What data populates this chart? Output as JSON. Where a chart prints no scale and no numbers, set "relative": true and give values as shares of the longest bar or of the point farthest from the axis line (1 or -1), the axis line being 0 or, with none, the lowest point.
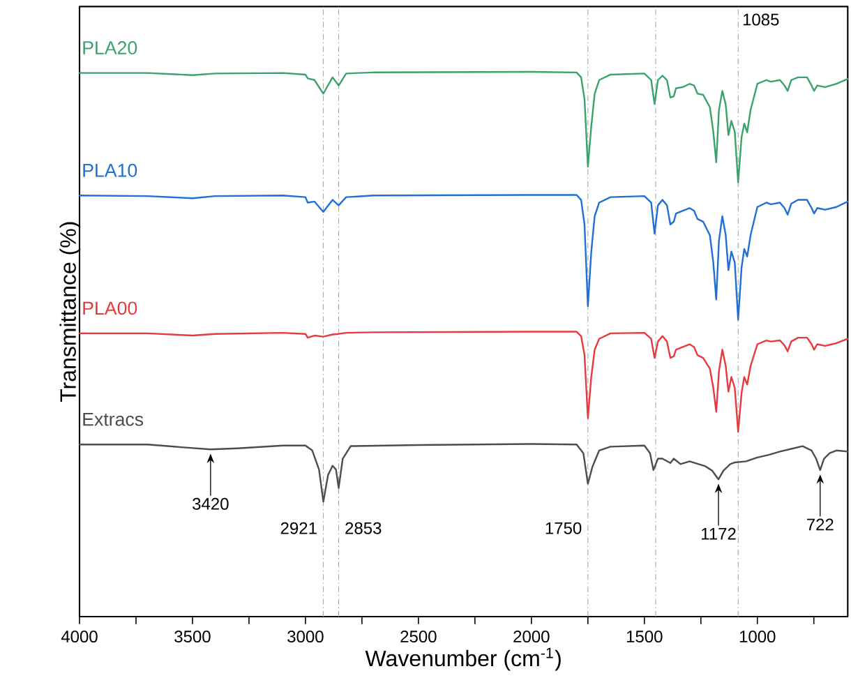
{
  "chart_data": {
    "type": "line",
    "relative": true,
    "xlabel": "Wavenumber (cm$^{-1}$)",
    "ylabel": "Transmittance (%)",
    "xlim": [
      4000,
      600
    ],
    "xticks": [
      4000,
      {
        "value": 3750,
        "label": null
      },
      3500,
      {
        "value": 3250,
        "label": null
      },
      3000,
      {
        "value": 2750,
        "label": null
      },
      2500,
      {
        "value": 2250,
        "label": null
      },
      2000,
      {
        "value": 1750,
        "label": null
      },
      1500,
      {
        "value": 1250,
        "label": null
      },
      1000,
      {
        "value": 750,
        "label": null
      }
    ],
    "tick_labels": "x",
    "marker": "none",
    "line_style": "solid",
    "series": [
      {
        "name": "PLA20",
        "color": "#3aa36b",
        "x": [
          4000,
          3700,
          3500,
          3400,
          3100,
          3000,
          2990,
          2960,
          2921,
          2880,
          2853,
          2820,
          2700,
          2000,
          1800,
          1780,
          1765,
          1750,
          1735,
          1720,
          1700,
          1650,
          1500,
          1470,
          1455,
          1440,
          1420,
          1400,
          1385,
          1370,
          1360,
          1330,
          1300,
          1280,
          1265,
          1240,
          1210,
          1195,
          1182,
          1170,
          1155,
          1140,
          1128,
          1115,
          1100,
          1085,
          1070,
          1058,
          1045,
          1030,
          1000,
          960,
          940,
          900,
          880,
          866,
          850,
          820,
          780,
          760,
          749,
          735,
          700,
          650,
          600
        ],
        "values": [
          0.998,
          0.998,
          0.994,
          0.997,
          0.998,
          0.995,
          0.988,
          0.985,
          0.96,
          0.99,
          0.975,
          0.997,
          0.999,
          1.0,
          0.999,
          0.99,
          0.95,
          0.826,
          0.9,
          0.96,
          0.985,
          0.995,
          0.997,
          0.985,
          0.941,
          0.985,
          0.993,
          0.985,
          0.953,
          0.955,
          0.97,
          0.972,
          0.978,
          0.975,
          0.96,
          0.958,
          0.935,
          0.89,
          0.834,
          0.93,
          0.965,
          0.94,
          0.884,
          0.91,
          0.89,
          0.797,
          0.88,
          0.905,
          0.889,
          0.93,
          0.978,
          0.985,
          0.982,
          0.985,
          0.975,
          0.965,
          0.985,
          0.99,
          0.99,
          0.975,
          0.965,
          0.975,
          0.972,
          0.978,
          0.987
        ]
      },
      {
        "name": "PLA10",
        "color": "#1f6fd6",
        "x": [
          4000,
          3700,
          3500,
          3400,
          3100,
          3000,
          2990,
          2960,
          2921,
          2880,
          2853,
          2820,
          2700,
          2000,
          1800,
          1780,
          1765,
          1750,
          1735,
          1720,
          1700,
          1650,
          1500,
          1470,
          1455,
          1440,
          1420,
          1400,
          1385,
          1370,
          1360,
          1330,
          1300,
          1280,
          1265,
          1240,
          1210,
          1195,
          1182,
          1170,
          1155,
          1140,
          1128,
          1115,
          1100,
          1085,
          1070,
          1058,
          1045,
          1030,
          1000,
          960,
          940,
          900,
          880,
          866,
          850,
          820,
          780,
          760,
          749,
          735,
          700,
          650,
          600
        ],
        "values": [
          0.773,
          0.772,
          0.768,
          0.772,
          0.773,
          0.77,
          0.76,
          0.762,
          0.743,
          0.765,
          0.755,
          0.77,
          0.773,
          0.774,
          0.774,
          0.765,
          0.72,
          0.57,
          0.67,
          0.735,
          0.76,
          0.77,
          0.772,
          0.76,
          0.703,
          0.755,
          0.765,
          0.755,
          0.72,
          0.725,
          0.74,
          0.745,
          0.75,
          0.745,
          0.73,
          0.725,
          0.7,
          0.65,
          0.582,
          0.69,
          0.735,
          0.7,
          0.636,
          0.67,
          0.65,
          0.545,
          0.64,
          0.675,
          0.661,
          0.7,
          0.752,
          0.76,
          0.757,
          0.76,
          0.75,
          0.738,
          0.758,
          0.765,
          0.765,
          0.75,
          0.74,
          0.75,
          0.747,
          0.752,
          0.762
        ]
      },
      {
        "name": "PLA00",
        "color": "#e8393e",
        "x": [
          4000,
          3700,
          3500,
          3400,
          3100,
          3000,
          2990,
          2960,
          2921,
          2880,
          2853,
          2820,
          2700,
          2000,
          1800,
          1780,
          1765,
          1750,
          1735,
          1720,
          1700,
          1650,
          1500,
          1470,
          1455,
          1440,
          1420,
          1400,
          1385,
          1370,
          1360,
          1330,
          1300,
          1280,
          1265,
          1240,
          1210,
          1195,
          1182,
          1170,
          1155,
          1140,
          1128,
          1115,
          1100,
          1085,
          1070,
          1058,
          1045,
          1030,
          1000,
          960,
          940,
          900,
          880,
          866,
          850,
          820,
          780,
          760,
          749,
          735,
          700,
          650,
          600
        ],
        "values": [
          0.52,
          0.52,
          0.516,
          0.519,
          0.521,
          0.519,
          0.512,
          0.516,
          0.514,
          0.518,
          0.519,
          0.521,
          0.522,
          0.523,
          0.523,
          0.515,
          0.48,
          0.364,
          0.44,
          0.49,
          0.51,
          0.52,
          0.521,
          0.51,
          0.475,
          0.505,
          0.515,
          0.505,
          0.475,
          0.478,
          0.49,
          0.495,
          0.5,
          0.495,
          0.48,
          0.475,
          0.455,
          0.42,
          0.376,
          0.45,
          0.49,
          0.46,
          0.413,
          0.44,
          0.42,
          0.339,
          0.41,
          0.44,
          0.426,
          0.46,
          0.5,
          0.507,
          0.505,
          0.507,
          0.498,
          0.487,
          0.505,
          0.512,
          0.512,
          0.5,
          0.49,
          0.5,
          0.497,
          0.502,
          0.51
        ]
      },
      {
        "name": "Extracs",
        "color": "#4d4d4d",
        "x": [
          4000,
          3700,
          3550,
          3420,
          3300,
          3100,
          3000,
          2970,
          2940,
          2921,
          2900,
          2880,
          2865,
          2853,
          2835,
          2800,
          2500,
          2000,
          1800,
          1770,
          1750,
          1730,
          1700,
          1650,
          1500,
          1475,
          1460,
          1440,
          1420,
          1385,
          1370,
          1340,
          1300,
          1260,
          1230,
          1200,
          1172,
          1150,
          1120,
          1100,
          1050,
          1000,
          950,
          900,
          850,
          800,
          760,
          740,
          722,
          705,
          680,
          650,
          600
        ],
        "values": [
          0.316,
          0.316,
          0.311,
          0.307,
          0.309,
          0.314,
          0.314,
          0.305,
          0.27,
          0.211,
          0.26,
          0.277,
          0.27,
          0.236,
          0.29,
          0.313,
          0.315,
          0.317,
          0.316,
          0.3,
          0.244,
          0.275,
          0.305,
          0.312,
          0.314,
          0.3,
          0.269,
          0.29,
          0.29,
          0.282,
          0.29,
          0.28,
          0.285,
          0.28,
          0.276,
          0.268,
          0.252,
          0.268,
          0.28,
          0.283,
          0.285,
          0.292,
          0.297,
          0.303,
          0.308,
          0.313,
          0.305,
          0.29,
          0.269,
          0.29,
          0.3,
          0.305,
          0.303
        ]
      }
    ],
    "ref_lines": [
      {
        "axis": "x",
        "value": 2921,
        "label": "2921",
        "color": "#a6a6a6",
        "line_style": "dashed"
      },
      {
        "axis": "x",
        "value": 2853,
        "label": "2853",
        "color": "#a6a6a6",
        "line_style": "dashed"
      },
      {
        "axis": "x",
        "value": 1750,
        "label": "1750",
        "color": "#a6a6a6",
        "line_style": "dashed"
      },
      {
        "axis": "x",
        "value": 1450,
        "color": "#a6a6a6",
        "line_style": "dashed"
      },
      {
        "axis": "x",
        "value": 1085,
        "label": "1085",
        "color": "#a6a6a6",
        "line_style": "dashed"
      }
    ],
    "annotations": [
      {
        "text": "3420",
        "x": 3420,
        "y": 0.307
      },
      {
        "text": "1172",
        "x": 1172,
        "y": 0.252
      },
      {
        "text": "722",
        "x": 722,
        "y": 0.269
      }
    ]
  }
}
